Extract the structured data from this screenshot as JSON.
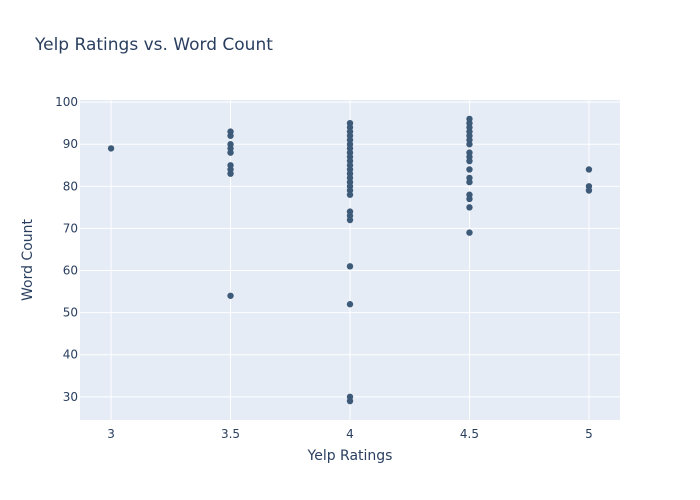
{
  "chart_data": {
    "type": "scatter",
    "title": "Yelp Ratings vs. Word Count",
    "xlabel": "Yelp Ratings",
    "ylabel": "Word Count",
    "xlim": [
      2.87,
      5.13
    ],
    "ylim": [
      24.5,
      100.5
    ],
    "xticks": [
      3,
      3.5,
      4,
      4.5,
      5
    ],
    "xtick_labels": [
      "3",
      "3.5",
      "4",
      "4.5",
      "5"
    ],
    "yticks": [
      30,
      40,
      50,
      60,
      70,
      80,
      90,
      100
    ],
    "ytick_labels": [
      "30",
      "40",
      "50",
      "60",
      "70",
      "80",
      "90",
      "100"
    ],
    "grid": true,
    "colors": {
      "marker": "#3d5a78",
      "plot_bg": "#e5ecf6",
      "grid": "#ffffff",
      "text": "#2a3f5f"
    },
    "points": [
      {
        "x": 3,
        "y": 89
      },
      {
        "x": 3.5,
        "y": 93
      },
      {
        "x": 3.5,
        "y": 92
      },
      {
        "x": 3.5,
        "y": 90
      },
      {
        "x": 3.5,
        "y": 89
      },
      {
        "x": 3.5,
        "y": 88
      },
      {
        "x": 3.5,
        "y": 85
      },
      {
        "x": 3.5,
        "y": 84
      },
      {
        "x": 3.5,
        "y": 83
      },
      {
        "x": 3.5,
        "y": 54
      },
      {
        "x": 4,
        "y": 95
      },
      {
        "x": 4,
        "y": 94
      },
      {
        "x": 4,
        "y": 93
      },
      {
        "x": 4,
        "y": 92
      },
      {
        "x": 4,
        "y": 91
      },
      {
        "x": 4,
        "y": 90
      },
      {
        "x": 4,
        "y": 89
      },
      {
        "x": 4,
        "y": 88
      },
      {
        "x": 4,
        "y": 87
      },
      {
        "x": 4,
        "y": 86
      },
      {
        "x": 4,
        "y": 85
      },
      {
        "x": 4,
        "y": 84
      },
      {
        "x": 4,
        "y": 83
      },
      {
        "x": 4,
        "y": 82
      },
      {
        "x": 4,
        "y": 81
      },
      {
        "x": 4,
        "y": 80
      },
      {
        "x": 4,
        "y": 79
      },
      {
        "x": 4,
        "y": 78
      },
      {
        "x": 4,
        "y": 74
      },
      {
        "x": 4,
        "y": 73
      },
      {
        "x": 4,
        "y": 72
      },
      {
        "x": 4,
        "y": 61
      },
      {
        "x": 4,
        "y": 52
      },
      {
        "x": 4,
        "y": 30
      },
      {
        "x": 4,
        "y": 29
      },
      {
        "x": 4.5,
        "y": 96
      },
      {
        "x": 4.5,
        "y": 95
      },
      {
        "x": 4.5,
        "y": 94
      },
      {
        "x": 4.5,
        "y": 93
      },
      {
        "x": 4.5,
        "y": 92
      },
      {
        "x": 4.5,
        "y": 91
      },
      {
        "x": 4.5,
        "y": 90
      },
      {
        "x": 4.5,
        "y": 88
      },
      {
        "x": 4.5,
        "y": 87
      },
      {
        "x": 4.5,
        "y": 86
      },
      {
        "x": 4.5,
        "y": 84
      },
      {
        "x": 4.5,
        "y": 82
      },
      {
        "x": 4.5,
        "y": 81
      },
      {
        "x": 4.5,
        "y": 78
      },
      {
        "x": 4.5,
        "y": 77
      },
      {
        "x": 4.5,
        "y": 75
      },
      {
        "x": 4.5,
        "y": 69
      },
      {
        "x": 5,
        "y": 84
      },
      {
        "x": 5,
        "y": 80
      },
      {
        "x": 5,
        "y": 79
      }
    ]
  }
}
